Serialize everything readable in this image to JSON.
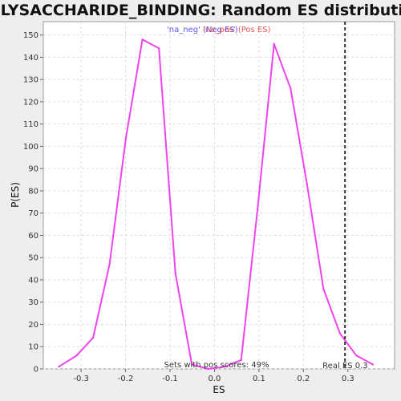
{
  "chart_data": {
    "type": "line",
    "title": "POLYSACCHARIDE_BINDING: Random ES distribution",
    "xlabel": "ES",
    "ylabel": "P(ES)",
    "xlim": [
      -0.385,
      0.405
    ],
    "ylim": [
      0,
      156
    ],
    "x_ticks": [
      -0.3,
      -0.2,
      -0.1,
      0.0,
      0.1,
      0.2,
      0.3
    ],
    "x_tick_labels": [
      "-0.3",
      "-0.2",
      "-0.1",
      "0.0",
      "0.1",
      "0.2",
      "0.3"
    ],
    "y_ticks": [
      0,
      10,
      20,
      30,
      40,
      50,
      60,
      70,
      80,
      90,
      100,
      110,
      120,
      130,
      140,
      150
    ],
    "y_tick_labels": [
      "0",
      "10",
      "20",
      "30",
      "40",
      "50",
      "60",
      "70",
      "80",
      "90",
      "100",
      "110",
      "120",
      "130",
      "140",
      "150"
    ],
    "grid": true,
    "series": [
      {
        "color": "#ee44ee",
        "x": [
          -0.35,
          -0.31,
          -0.273,
          -0.236,
          -0.199,
          -0.162,
          -0.125,
          -0.088,
          -0.051,
          -0.014,
          0.023,
          0.06,
          0.097,
          0.134,
          0.171,
          0.208,
          0.245,
          0.282,
          0.319,
          0.356
        ],
        "y": [
          1,
          6,
          14,
          47,
          104,
          148,
          144,
          43,
          2,
          0,
          1,
          4,
          72,
          146,
          126,
          83,
          36,
          16,
          6,
          2
        ]
      }
    ],
    "legend": {
      "placement": "top",
      "items": [
        {
          "label": "'na_neg' (Neg ES)",
          "color": "#5555ee"
        },
        {
          "label": "'na_pos' (Pos ES)",
          "color": "#ee5555"
        }
      ]
    },
    "reference_line": {
      "x": 0.2935,
      "label": "Real ES 0.3",
      "color": "#333333"
    },
    "annotation": "Sets with pos scores: 49%"
  }
}
